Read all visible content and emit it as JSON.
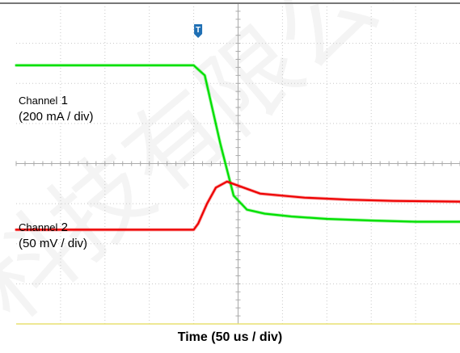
{
  "chart_data": {
    "type": "line",
    "title": "",
    "xlabel": "Time (50 us / div)",
    "ylabel": "",
    "grid": true,
    "divisions": {
      "x": 10,
      "y": 8
    },
    "x_range_div": [
      0,
      10
    ],
    "y_range_div": [
      0,
      8
    ],
    "trigger_marker": "T",
    "annotations": [
      {
        "line1_word": "Channel",
        "line1_num": "1",
        "line2": "(200 mA / div)"
      },
      {
        "line1_word": "Channel",
        "line1_num": "2",
        "line2": "(50 mV / div)"
      }
    ],
    "series": [
      {
        "color": "#00e000",
        "x_div": [
          0,
          2.0,
          4.0,
          4.25,
          4.6,
          4.9,
          5.2,
          5.6,
          6.2,
          7.0,
          8.0,
          9.0,
          10.0
        ],
        "y_div": [
          6.45,
          6.45,
          6.45,
          6.2,
          4.5,
          3.2,
          2.85,
          2.75,
          2.68,
          2.62,
          2.58,
          2.55,
          2.55
        ]
      },
      {
        "color": "#ee0000",
        "x_div": [
          0,
          2.0,
          4.0,
          4.1,
          4.3,
          4.5,
          4.75,
          5.0,
          5.5,
          6.5,
          7.5,
          8.5,
          10.0
        ],
        "y_div": [
          2.35,
          2.35,
          2.35,
          2.5,
          3.0,
          3.4,
          3.55,
          3.45,
          3.25,
          3.15,
          3.1,
          3.07,
          3.05
        ]
      }
    ],
    "background_watermark": "科技有限公司",
    "colors": {
      "grid": "#c8c8c8",
      "axis": "#aaaaaa",
      "border": "#777777",
      "marker": "#1f6fb4",
      "bottom_line": "#e8e070"
    }
  }
}
